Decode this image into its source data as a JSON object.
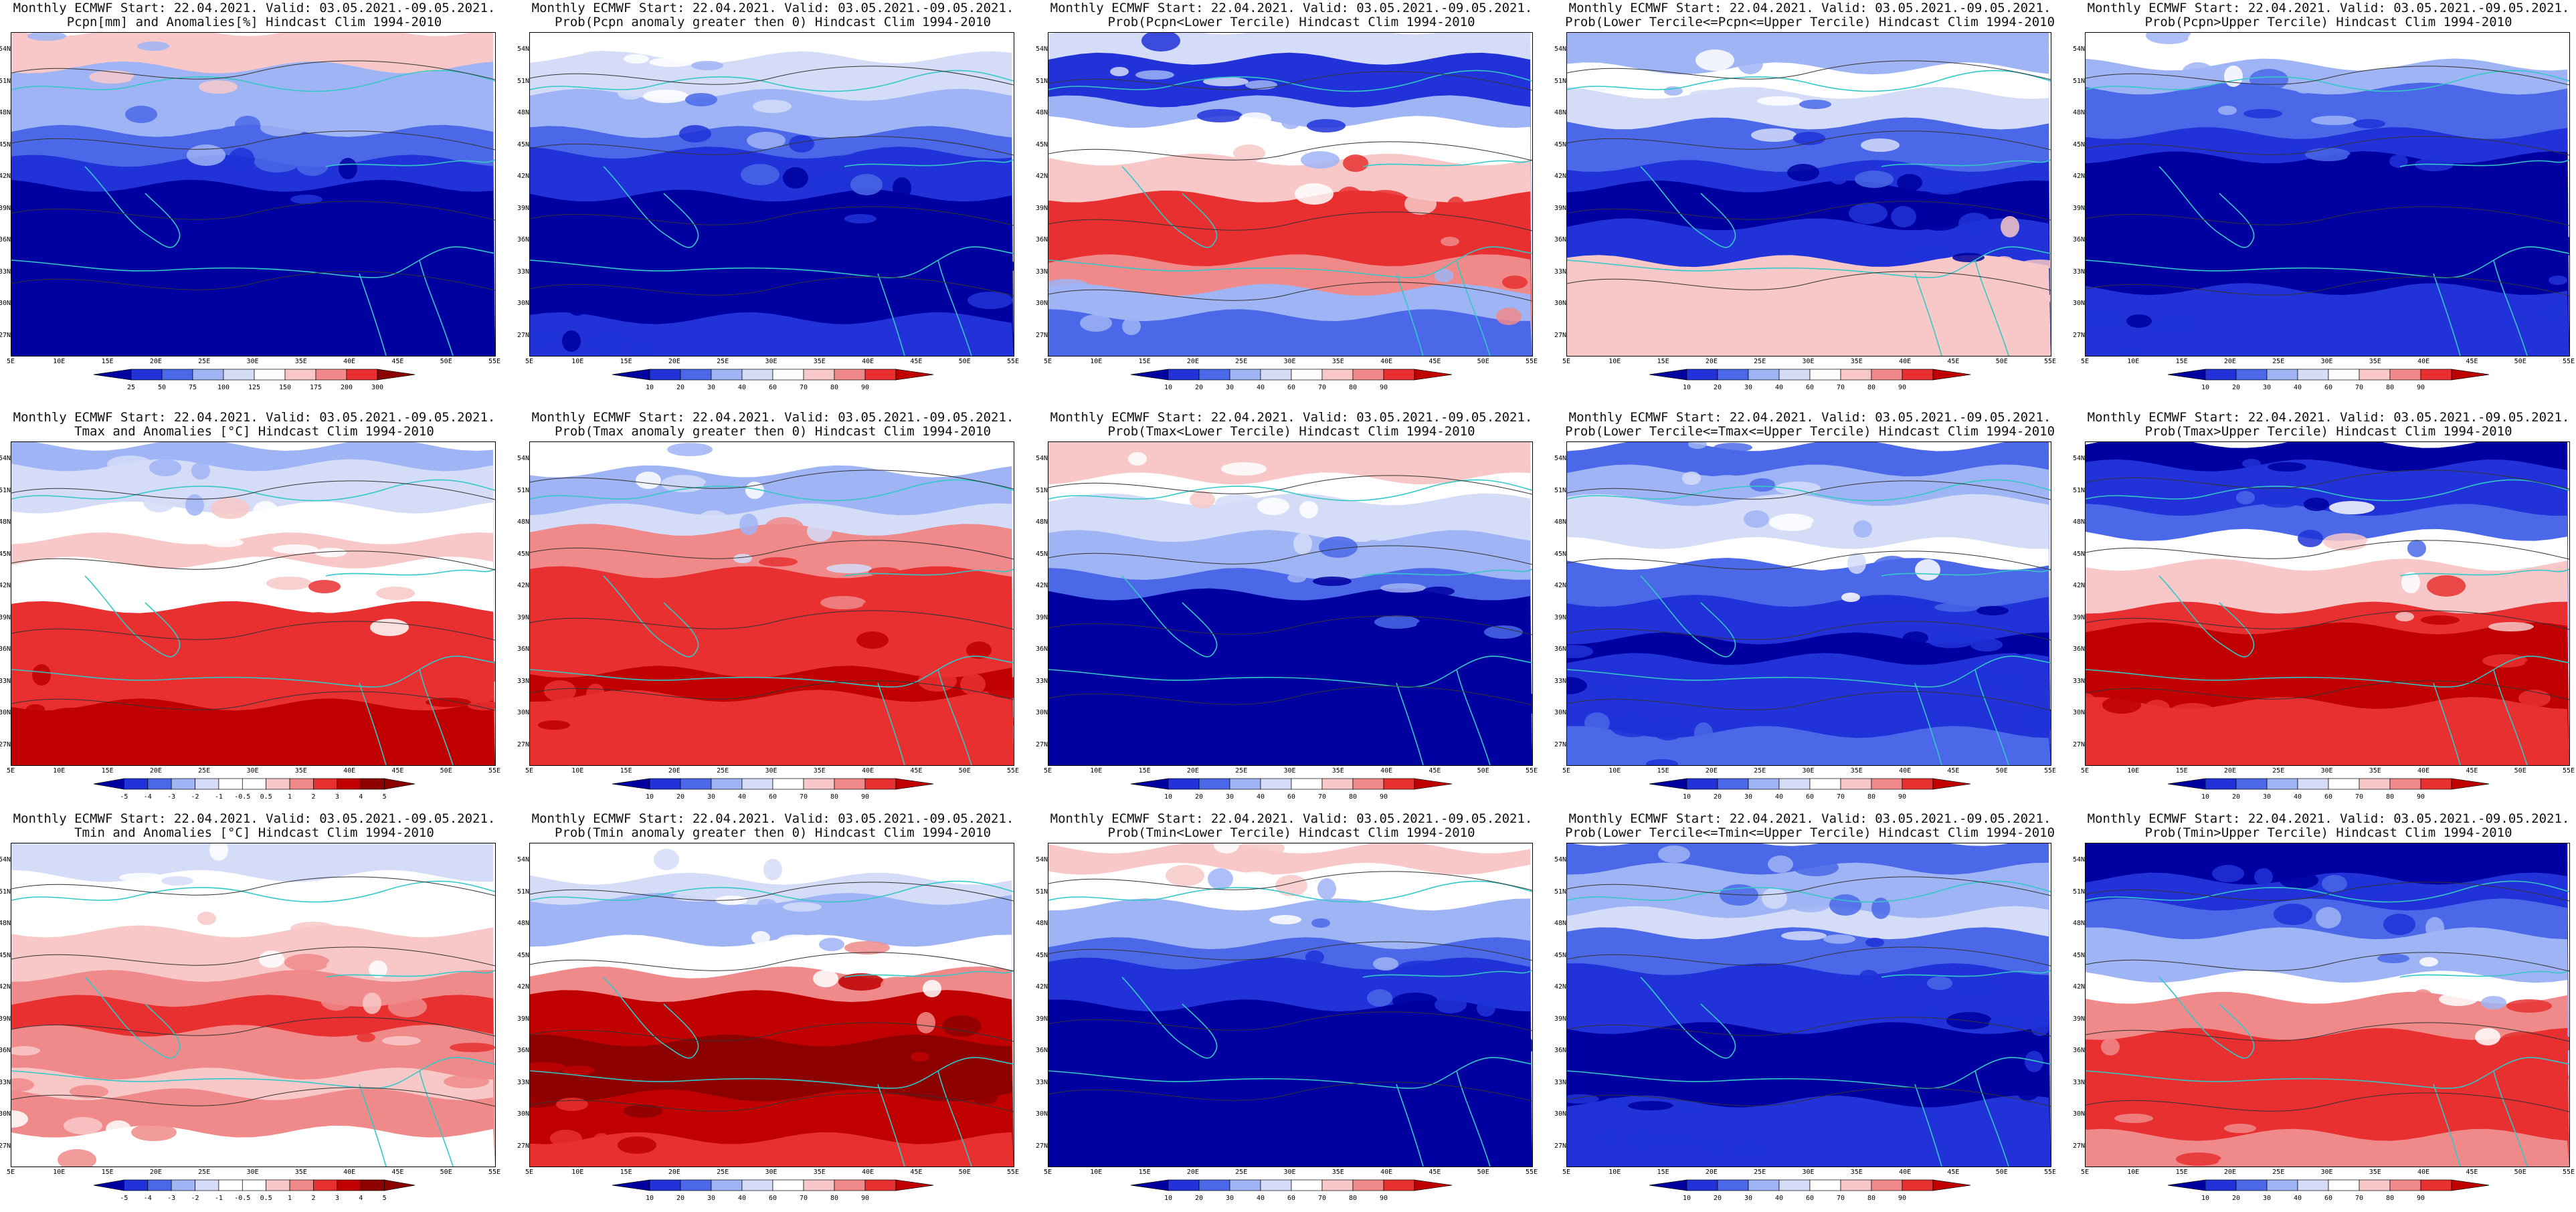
{
  "panels": [
    {
      "line1": "Monthly ECMWF Start: 22.04.2021. Valid: 03.05.2021.-09.05.2021.",
      "line2": "Pcpn[mm] and Anomalies[%] Hindcast Clim 1994-2010",
      "scale": "anom",
      "labels": [
        "25",
        "50",
        "75",
        "100",
        "125",
        "150",
        "175",
        "200",
        "300"
      ],
      "field": "pcpn_anom"
    },
    {
      "line1": "Monthly ECMWF Start: 22.04.2021. Valid: 03.05.2021.-09.05.2021.",
      "line2": "Prob(Pcpn anomaly greater then 0) Hindcast Clim 1994-2010",
      "scale": "prob",
      "labels": [
        "10",
        "20",
        "30",
        "40",
        "60",
        "70",
        "80",
        "90"
      ],
      "field": "pcpn_gt0"
    },
    {
      "line1": "Monthly ECMWF Start: 22.04.2021. Valid: 03.05.2021.-09.05.2021.",
      "line2": "Prob(Pcpn<Lower Tercile) Hindcast Clim 1994-2010",
      "scale": "prob",
      "labels": [
        "10",
        "20",
        "30",
        "40",
        "60",
        "70",
        "80",
        "90"
      ],
      "field": "pcpn_lower"
    },
    {
      "line1": "Monthly ECMWF Start: 22.04.2021. Valid: 03.05.2021.-09.05.2021.",
      "line2": "Prob(Lower Tercile<=Pcpn<=Upper Tercile) Hindcast Clim 1994-2010",
      "scale": "prob",
      "labels": [
        "10",
        "20",
        "30",
        "40",
        "60",
        "70",
        "80",
        "90"
      ],
      "field": "pcpn_mid"
    },
    {
      "line1": "Monthly ECMWF Start: 22.04.2021. Valid: 03.05.2021.-09.05.2021.",
      "line2": "Prob(Pcpn>Upper Tercile) Hindcast Clim 1994-2010",
      "scale": "prob",
      "labels": [
        "10",
        "20",
        "30",
        "40",
        "60",
        "70",
        "80",
        "90"
      ],
      "field": "pcpn_upper"
    },
    {
      "line1": "Monthly ECMWF Start: 22.04.2021. Valid: 03.05.2021.-09.05.2021.",
      "line2": "Tmax and Anomalies [°C] Hindcast Clim 1994-2010",
      "scale": "temp",
      "labels": [
        "-5",
        "-4",
        "-3",
        "-2",
        "-1",
        "-0.5",
        "0.5",
        "1",
        "2",
        "3",
        "4",
        "5"
      ],
      "field": "tmax_anom"
    },
    {
      "line1": "Monthly ECMWF Start: 22.04.2021. Valid: 03.05.2021.-09.05.2021.",
      "line2": "Prob(Tmax anomaly greater then 0) Hindcast Clim 1994-2010",
      "scale": "prob",
      "labels": [
        "10",
        "20",
        "30",
        "40",
        "60",
        "70",
        "80",
        "90"
      ],
      "field": "tmax_gt0"
    },
    {
      "line1": "Monthly ECMWF Start: 22.04.2021. Valid: 03.05.2021.-09.05.2021.",
      "line2": "Prob(Tmax<Lower Tercile) Hindcast Clim 1994-2010",
      "scale": "prob",
      "labels": [
        "10",
        "20",
        "30",
        "40",
        "60",
        "70",
        "80",
        "90"
      ],
      "field": "tmax_lower"
    },
    {
      "line1": "Monthly ECMWF Start: 22.04.2021. Valid: 03.05.2021.-09.05.2021.",
      "line2": "Prob(Lower Tercile<=Tmax<=Upper Tercile) Hindcast Clim 1994-2010",
      "scale": "prob",
      "labels": [
        "10",
        "20",
        "30",
        "40",
        "60",
        "70",
        "80",
        "90"
      ],
      "field": "tmax_mid"
    },
    {
      "line1": "Monthly ECMWF Start: 22.04.2021. Valid: 03.05.2021.-09.05.2021.",
      "line2": "Prob(Tmax>Upper Tercile) Hindcast Clim 1994-2010",
      "scale": "prob",
      "labels": [
        "10",
        "20",
        "30",
        "40",
        "60",
        "70",
        "80",
        "90"
      ],
      "field": "tmax_upper"
    },
    {
      "line1": "Monthly ECMWF Start: 22.04.2021. Valid: 03.05.2021.-09.05.2021.",
      "line2": "Tmin and Anomalies [°C] Hindcast Clim 1994-2010",
      "scale": "temp",
      "labels": [
        "-5",
        "-4",
        "-3",
        "-2",
        "-1",
        "-0.5",
        "0.5",
        "1",
        "2",
        "3",
        "4",
        "5"
      ],
      "field": "tmin_anom"
    },
    {
      "line1": "Monthly ECMWF Start: 22.04.2021. Valid: 03.05.2021.-09.05.2021.",
      "line2": "Prob(Tmin anomaly greater then 0) Hindcast Clim 1994-2010",
      "scale": "prob",
      "labels": [
        "10",
        "20",
        "30",
        "40",
        "60",
        "70",
        "80",
        "90"
      ],
      "field": "tmin_gt0"
    },
    {
      "line1": "Monthly ECMWF Start: 22.04.2021. Valid: 03.05.2021.-09.05.2021.",
      "line2": "Prob(Tmin<Lower Tercile) Hindcast Clim 1994-2010",
      "scale": "prob",
      "labels": [
        "10",
        "20",
        "30",
        "40",
        "60",
        "70",
        "80",
        "90"
      ],
      "field": "tmin_lower"
    },
    {
      "line1": "Monthly ECMWF Start: 22.04.2021. Valid: 03.05.2021.-09.05.2021.",
      "line2": "Prob(Lower Tercile<=Tmin<=Upper Tercile) Hindcast Clim 1994-2010",
      "scale": "prob",
      "labels": [
        "10",
        "20",
        "30",
        "40",
        "60",
        "70",
        "80",
        "90"
      ],
      "field": "tmin_mid"
    },
    {
      "line1": "Monthly ECMWF Start: 22.04.2021. Valid: 03.05.2021.-09.05.2021.",
      "line2": "Prob(Tmin>Upper Tercile) Hindcast Clim 1994-2010",
      "scale": "prob",
      "labels": [
        "10",
        "20",
        "30",
        "40",
        "60",
        "70",
        "80",
        "90"
      ],
      "field": "tmin_upper"
    }
  ],
  "lat_ticks": [
    "54N",
    "51N",
    "48N",
    "45N",
    "42N",
    "39N",
    "36N",
    "33N",
    "30N",
    "27N"
  ],
  "lon_ticks": [
    "5E",
    "10E",
    "15E",
    "20E",
    "25E",
    "30E",
    "35E",
    "40E",
    "45E",
    "50E",
    "55E"
  ],
  "colors": {
    "deep_blue": "#0000a0",
    "blue": "#2032d8",
    "mid_blue": "#4a68e8",
    "light_blue": "#9fb4f4",
    "pale_blue": "#d4dcf8",
    "white": "#ffffff",
    "pale_red": "#f8c8c8",
    "light_red": "#f08a8a",
    "red": "#e83030",
    "deep_red": "#c00000",
    "dark_red": "#8c0000",
    "coast": "#33c8c8",
    "contour": "#333333"
  }
}
